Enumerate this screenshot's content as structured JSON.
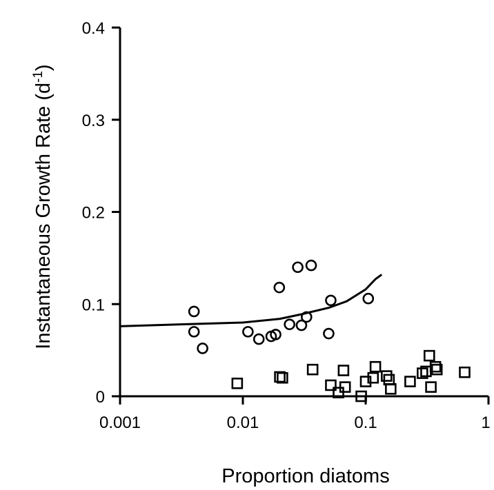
{
  "chart_data": {
    "type": "scatter",
    "title": "",
    "xlabel": "Proportion diatoms",
    "ylabel_main": "Instantaneous Growth Rate (d",
    "ylabel_sup": "-1",
    "ylabel_close": ")",
    "x_scale": "log",
    "xlim": [
      0.001,
      1
    ],
    "ylim": [
      0,
      0.4
    ],
    "x_ticks": [
      0.001,
      0.01,
      0.1,
      1
    ],
    "x_tick_labels": [
      "0.001",
      "0.01",
      "0.1",
      "1"
    ],
    "y_ticks": [
      0,
      0.1,
      0.2,
      0.3,
      0.4
    ],
    "y_tick_labels": [
      "0",
      "0.1",
      "0.2",
      "0.3",
      "0.4"
    ],
    "grid": false,
    "legend": "none",
    "series": [
      {
        "marker": "circle",
        "points": [
          [
            0.004,
            0.092
          ],
          [
            0.004,
            0.07
          ],
          [
            0.0047,
            0.052
          ],
          [
            0.011,
            0.07
          ],
          [
            0.0135,
            0.062
          ],
          [
            0.017,
            0.065
          ],
          [
            0.0185,
            0.067
          ],
          [
            0.0198,
            0.118
          ],
          [
            0.024,
            0.078
          ],
          [
            0.028,
            0.14
          ],
          [
            0.03,
            0.077
          ],
          [
            0.033,
            0.086
          ],
          [
            0.036,
            0.142
          ],
          [
            0.05,
            0.068
          ],
          [
            0.052,
            0.104
          ],
          [
            0.105,
            0.106
          ]
        ]
      },
      {
        "marker": "square",
        "points": [
          [
            0.009,
            0.014
          ],
          [
            0.02,
            0.021
          ],
          [
            0.021,
            0.02
          ],
          [
            0.037,
            0.029
          ],
          [
            0.052,
            0.012
          ],
          [
            0.06,
            0.004
          ],
          [
            0.066,
            0.028
          ],
          [
            0.068,
            0.01
          ],
          [
            0.092,
            0.0
          ],
          [
            0.1,
            0.016
          ],
          [
            0.115,
            0.02
          ],
          [
            0.12,
            0.032
          ],
          [
            0.148,
            0.022
          ],
          [
            0.155,
            0.018
          ],
          [
            0.16,
            0.008
          ],
          [
            0.23,
            0.016
          ],
          [
            0.29,
            0.025
          ],
          [
            0.31,
            0.027
          ],
          [
            0.33,
            0.044
          ],
          [
            0.34,
            0.01
          ],
          [
            0.37,
            0.032
          ],
          [
            0.38,
            0.029
          ],
          [
            0.64,
            0.026
          ]
        ]
      },
      {
        "marker": "line",
        "points": [
          [
            0.001,
            0.076
          ],
          [
            0.003,
            0.078
          ],
          [
            0.01,
            0.08
          ],
          [
            0.02,
            0.084
          ],
          [
            0.03,
            0.089
          ],
          [
            0.05,
            0.096
          ],
          [
            0.07,
            0.103
          ],
          [
            0.1,
            0.116
          ],
          [
            0.12,
            0.127
          ],
          [
            0.135,
            0.132
          ]
        ]
      }
    ]
  }
}
